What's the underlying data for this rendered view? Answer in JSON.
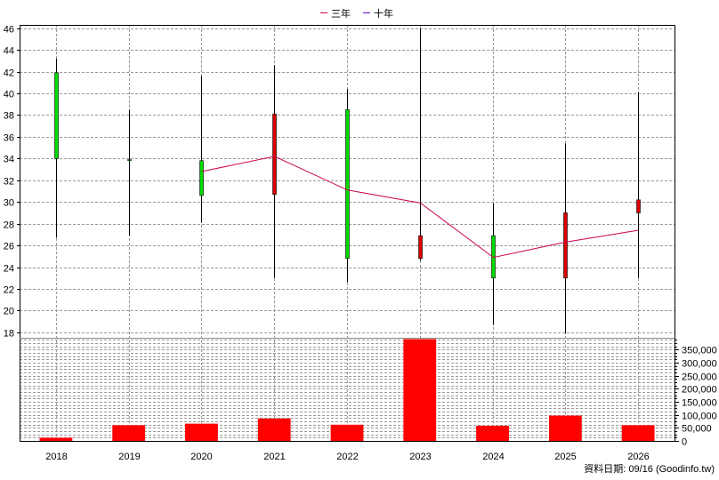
{
  "chart_data": [
    {
      "type": "candlestick",
      "categories": [
        "2018",
        "2019",
        "2020",
        "2021",
        "2022",
        "2023",
        "2024",
        "2025",
        "2026"
      ],
      "yticks": [
        18,
        20,
        22,
        24,
        26,
        28,
        30,
        32,
        34,
        36,
        38,
        40,
        42,
        44,
        46
      ],
      "ylim": [
        17.5,
        46.3
      ],
      "grid": true,
      "legend": {
        "position": "top-center",
        "entries": [
          "三年",
          "十年"
        ]
      },
      "candles": [
        {
          "x": "2018",
          "open": 34.0,
          "high": 43.2,
          "low": 26.7,
          "close": 41.9,
          "color": "#00dd00"
        },
        {
          "x": "2019",
          "open": 33.9,
          "high": 38.5,
          "low": 26.9,
          "close": 33.9,
          "color": "#00dd00"
        },
        {
          "x": "2020",
          "open": 30.6,
          "high": 41.6,
          "low": 28.1,
          "close": 33.8,
          "color": "#00dd00"
        },
        {
          "x": "2021",
          "open": 38.1,
          "high": 42.6,
          "low": 23.0,
          "close": 30.7,
          "color": "#dd0000"
        },
        {
          "x": "2022",
          "open": 24.8,
          "high": 40.4,
          "low": 22.6,
          "close": 38.5,
          "color": "#00dd00"
        },
        {
          "x": "2023",
          "open": 26.9,
          "high": 46.0,
          "low": 24.6,
          "close": 24.8,
          "color": "#dd0000"
        },
        {
          "x": "2024",
          "open": 23.0,
          "high": 29.9,
          "low": 18.7,
          "close": 26.9,
          "color": "#00dd00"
        },
        {
          "x": "2025",
          "open": 29.0,
          "high": 35.4,
          "low": 17.9,
          "close": 23.0,
          "color": "#dd0000"
        },
        {
          "x": "2026",
          "open": 30.2,
          "high": 40.1,
          "low": 23.0,
          "close": 29.0,
          "color": "#dd0000"
        }
      ],
      "series": [
        {
          "name": "三年",
          "color": "#cc0055",
          "x": [
            "2020",
            "2021",
            "2022",
            "2023",
            "2024",
            "2025",
            "2026"
          ],
          "values": [
            32.8,
            34.2,
            31.1,
            29.9,
            24.9,
            26.3,
            27.4
          ]
        },
        {
          "name": "十年",
          "color": "#6600cc",
          "x": [],
          "values": []
        }
      ]
    },
    {
      "type": "bar",
      "categories": [
        "2018",
        "2019",
        "2020",
        "2021",
        "2022",
        "2023",
        "2024",
        "2025",
        "2026"
      ],
      "values": [
        12000,
        60000,
        66000,
        86000,
        62000,
        390000,
        58000,
        97000,
        60000
      ],
      "yticks": [
        0,
        50000,
        100000,
        150000,
        200000,
        250000,
        300000,
        350000
      ],
      "ytick_labels": [
        "0",
        "50,000",
        "100,000",
        "150,000",
        "200,000",
        "250,000",
        "300,000",
        "350,000"
      ],
      "ylim": [
        0,
        395000
      ],
      "color": "#ff0000"
    }
  ],
  "footer": "資料日期: 09/16  (Goodinfo.tw)"
}
